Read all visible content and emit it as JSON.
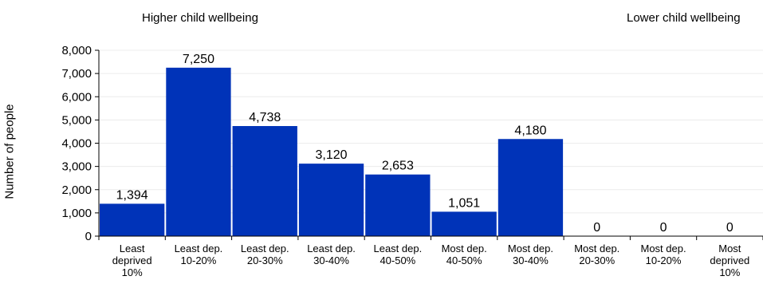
{
  "chart_data": {
    "type": "bar",
    "annotation_left": "Higher child wellbeing",
    "annotation_right": "Lower child wellbeing",
    "ylabel": "Number of people",
    "ylim": [
      0,
      8000
    ],
    "yticks": [
      "0",
      "1,000",
      "2,000",
      "3,000",
      "4,000",
      "5,000",
      "6,000",
      "7,000",
      "8,000"
    ],
    "bar_color": "#0033b8",
    "categories": [
      [
        "Least",
        "deprived",
        "10%"
      ],
      [
        "Least dep.",
        "10-20%"
      ],
      [
        "Least dep.",
        "20-30%"
      ],
      [
        "Least dep.",
        "30-40%"
      ],
      [
        "Least dep.",
        "40-50%"
      ],
      [
        "Most dep.",
        "40-50%"
      ],
      [
        "Most dep.",
        "30-40%"
      ],
      [
        "Most dep.",
        "20-30%"
      ],
      [
        "Most dep.",
        "10-20%"
      ],
      [
        "Most",
        "deprived",
        "10%"
      ]
    ],
    "values": [
      1394,
      7250,
      4738,
      3120,
      2653,
      1051,
      4180,
      0,
      0,
      0
    ],
    "value_labels": [
      "1,394",
      "7,250",
      "4,738",
      "3,120",
      "2,653",
      "1,051",
      "4,180",
      "0",
      "0",
      "0"
    ]
  }
}
